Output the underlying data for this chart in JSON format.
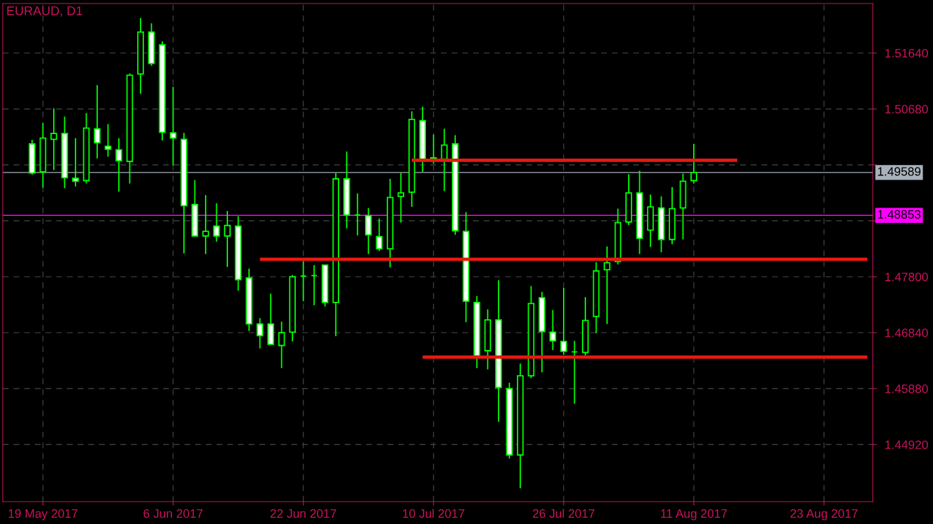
{
  "chart_data": {
    "type": "candlestick",
    "title": "EURAUD, D1",
    "categories": [
      null,
      "19 May 2017",
      null,
      null,
      null,
      null,
      null,
      null,
      null,
      null,
      null,
      null,
      null,
      "6 Jun 2017",
      null,
      null,
      null,
      null,
      null,
      null,
      null,
      null,
      null,
      null,
      null,
      "22 Jun 2017",
      null,
      null,
      null,
      null,
      null,
      null,
      null,
      null,
      null,
      null,
      null,
      "10 Jul 2017",
      null,
      null,
      null,
      null,
      null,
      null,
      null,
      null,
      null,
      null,
      null,
      "26 Jul 2017",
      null,
      null,
      null,
      null,
      null,
      null,
      null,
      null,
      null,
      null,
      null,
      "11 Aug 2017",
      null,
      null,
      null,
      null,
      null,
      null,
      null,
      null,
      null,
      null,
      null,
      "23 Aug 2017",
      null,
      null,
      null,
      null
    ],
    "ohlc": [
      [
        1.5008,
        1.5015,
        1.4955,
        1.4958
      ],
      [
        1.496,
        1.5044,
        1.4933,
        1.5018
      ],
      [
        1.5016,
        1.5069,
        1.4963,
        1.5026
      ],
      [
        1.5026,
        1.5055,
        1.4932,
        1.495
      ],
      [
        1.4949,
        1.5018,
        1.4935,
        1.4944
      ],
      [
        1.4945,
        1.5061,
        1.494,
        1.5035
      ],
      [
        1.5034,
        1.5109,
        1.4983,
        1.501
      ],
      [
        1.5004,
        1.5042,
        1.4986,
        1.4999
      ],
      [
        1.4998,
        1.5018,
        1.4926,
        1.4979
      ],
      [
        1.4978,
        1.5129,
        1.494,
        1.5126
      ],
      [
        1.5128,
        1.5224,
        1.5094,
        1.52
      ],
      [
        1.52,
        1.5215,
        1.5142,
        1.5146
      ],
      [
        1.5178,
        1.5184,
        1.5014,
        1.5028
      ],
      [
        1.5027,
        1.5106,
        1.4971,
        1.5018
      ],
      [
        1.5016,
        1.5027,
        1.482,
        1.4902
      ],
      [
        1.4904,
        1.4946,
        1.4849,
        1.485
      ],
      [
        1.485,
        1.492,
        1.4819,
        1.4858
      ],
      [
        1.4867,
        1.4906,
        1.484,
        1.485
      ],
      [
        1.485,
        1.4893,
        1.4797,
        1.4868
      ],
      [
        1.4867,
        1.4884,
        1.4756,
        1.4775
      ],
      [
        1.4778,
        1.4794,
        1.4687,
        1.4699
      ],
      [
        1.4699,
        1.4709,
        1.4657,
        1.4679
      ],
      [
        1.4699,
        1.4751,
        1.4664,
        1.4664
      ],
      [
        1.4662,
        1.4703,
        1.4623,
        1.4684
      ],
      [
        1.4685,
        1.4783,
        1.4669,
        1.478
      ],
      [
        1.4781,
        1.4807,
        1.4738,
        1.4781
      ],
      [
        1.4782,
        1.48,
        1.4731,
        1.4782
      ],
      [
        1.48,
        1.48,
        1.4729,
        1.4736
      ],
      [
        1.4736,
        1.4958,
        1.4678,
        1.4948
      ],
      [
        1.4948,
        1.4995,
        1.4863,
        1.4886
      ],
      [
        1.4886,
        1.4923,
        1.4851,
        1.4886
      ],
      [
        1.4885,
        1.4898,
        1.4819,
        1.4852
      ],
      [
        1.4849,
        1.488,
        1.4824,
        1.4828
      ],
      [
        1.4828,
        1.4948,
        1.4796,
        1.4916
      ],
      [
        1.4918,
        1.4958,
        1.4873,
        1.4924
      ],
      [
        1.4925,
        1.5064,
        1.49,
        1.505
      ],
      [
        1.5048,
        1.5072,
        1.496,
        1.4982
      ],
      [
        1.4984,
        1.5024,
        1.4974,
        1.4981
      ],
      [
        1.4982,
        1.5034,
        1.4927,
        1.5006
      ],
      [
        1.5008,
        1.5023,
        1.4852,
        1.4859
      ],
      [
        1.4858,
        1.4891,
        1.4702,
        1.4738
      ],
      [
        1.4736,
        1.4747,
        1.4623,
        1.4644
      ],
      [
        1.4653,
        1.4724,
        1.4621,
        1.4706
      ],
      [
        1.4706,
        1.4774,
        1.4531,
        1.459
      ],
      [
        1.4588,
        1.4598,
        1.4468,
        1.4474
      ],
      [
        1.4474,
        1.4631,
        1.4417,
        1.461
      ],
      [
        1.461,
        1.4764,
        1.4606,
        1.4734
      ],
      [
        1.4744,
        1.4754,
        1.4616,
        1.4686
      ],
      [
        1.4685,
        1.4723,
        1.4654,
        1.467
      ],
      [
        1.4669,
        1.4761,
        1.4646,
        1.4652
      ],
      [
        1.4651,
        1.467,
        1.4562,
        1.4651
      ],
      [
        1.465,
        1.4745,
        1.4645,
        1.4705
      ],
      [
        1.4712,
        1.4805,
        1.4683,
        1.479
      ],
      [
        1.4792,
        1.4832,
        1.4699,
        1.4804
      ],
      [
        1.4806,
        1.4897,
        1.4801,
        1.4873
      ],
      [
        1.4874,
        1.4956,
        1.4869,
        1.4924
      ],
      [
        1.4924,
        1.4962,
        1.4819,
        1.4846
      ],
      [
        1.486,
        1.4921,
        1.4831,
        1.49
      ],
      [
        1.4898,
        1.4918,
        1.4822,
        1.4844
      ],
      [
        1.4844,
        1.4934,
        1.4836,
        1.4897
      ],
      [
        1.4898,
        1.4957,
        1.4844,
        1.4944
      ],
      [
        1.4945,
        1.5008,
        1.494,
        1.49589
      ],
      null,
      null,
      null,
      null,
      null,
      null,
      null,
      null,
      null,
      null,
      null,
      null,
      null,
      null,
      null,
      null
    ],
    "colors": [
      "#ffffff",
      "#000000",
      "#000000",
      "#ffffff",
      "#ffffff",
      "#000000",
      "#ffffff",
      "#ffffff",
      "#ffffff",
      "#000000",
      "#000000",
      "#ffffff",
      "#ffffff",
      "#ffffff",
      "#ffffff",
      "#ffffff",
      "#000000",
      "#ffffff",
      "#000000",
      "#ffffff",
      "#ffffff",
      "#ffffff",
      "#ffffff",
      "#000000",
      "#000000",
      "#00ff00",
      "#00ff00",
      "#ffffff",
      "#000000",
      "#ffffff",
      "#00ff00",
      "#ffffff",
      "#ffffff",
      "#000000",
      "#000000",
      "#000000",
      "#ffffff",
      "#ffffff",
      "#000000",
      "#ffffff",
      "#ffffff",
      "#ffffff",
      "#000000",
      "#ffffff",
      "#ffffff",
      "#000000",
      "#000000",
      "#ffffff",
      "#ffffff",
      "#ffffff",
      "#00ff00",
      "#000000",
      "#000000",
      "#000000",
      "#000000",
      "#000000",
      "#ffffff",
      "#000000",
      "#ffffff",
      "#000000",
      "#000000",
      "#000000",
      null,
      null,
      null,
      null,
      null,
      null,
      null,
      null,
      null,
      null,
      null,
      null,
      null,
      null,
      null,
      null
    ],
    "color": "#00ff00",
    "series": [
      {
        "type": "line",
        "color": "#e8190f",
        "values": [
          null,
          null,
          null,
          null,
          null,
          null,
          null,
          null,
          null,
          null,
          null,
          null,
          null,
          null,
          null,
          null,
          null,
          null,
          null,
          null,
          null,
          null,
          null,
          null,
          null,
          null,
          null,
          null,
          null,
          null,
          null,
          null,
          null,
          null,
          null,
          1.498,
          1.498,
          1.498,
          1.498,
          1.498,
          1.498,
          1.498,
          1.498,
          1.498,
          1.498,
          1.498,
          1.498,
          1.498,
          1.498,
          1.498,
          1.498,
          1.498,
          1.498,
          1.498,
          1.498,
          1.498,
          1.498,
          1.498,
          1.498,
          1.498,
          1.498,
          1.498,
          1.498,
          1.498,
          1.498,
          1.498,
          null,
          null,
          null,
          null,
          null,
          null,
          null,
          null,
          null,
          null,
          null,
          null
        ]
      },
      {
        "type": "line",
        "color": "#e8190f",
        "values": [
          null,
          null,
          null,
          null,
          null,
          null,
          null,
          null,
          null,
          null,
          null,
          null,
          null,
          null,
          null,
          null,
          null,
          null,
          null,
          null,
          null,
          1.481,
          1.481,
          1.481,
          1.481,
          1.481,
          1.481,
          1.481,
          1.481,
          1.481,
          1.481,
          1.481,
          1.481,
          1.481,
          1.481,
          1.481,
          1.481,
          1.481,
          1.481,
          1.481,
          1.481,
          1.481,
          1.481,
          1.481,
          1.481,
          1.481,
          1.481,
          1.481,
          1.481,
          1.481,
          1.481,
          1.481,
          1.481,
          1.481,
          1.481,
          1.481,
          1.481,
          1.481,
          1.481,
          1.481,
          1.481,
          1.481,
          1.481,
          1.481,
          1.481,
          1.481,
          1.481,
          1.481,
          1.481,
          1.481,
          1.481,
          1.481,
          1.481,
          1.481,
          1.481,
          1.481,
          1.481,
          1.481
        ]
      },
      {
        "type": "line",
        "color": "#e8190f",
        "values": [
          null,
          null,
          null,
          null,
          null,
          null,
          null,
          null,
          null,
          null,
          null,
          null,
          null,
          null,
          null,
          null,
          null,
          null,
          null,
          null,
          null,
          null,
          null,
          null,
          null,
          null,
          null,
          null,
          null,
          null,
          null,
          null,
          null,
          null,
          null,
          null,
          1.4642,
          1.4642,
          1.4642,
          1.4642,
          1.4642,
          1.4642,
          1.4642,
          1.4642,
          1.4642,
          1.4642,
          1.4642,
          1.4642,
          1.4642,
          1.4642,
          1.4642,
          1.4642,
          1.4642,
          1.4642,
          1.4642,
          1.4642,
          1.4642,
          1.4642,
          1.4642,
          1.4642,
          1.4642,
          1.4642,
          1.4642,
          1.4642,
          1.4642,
          1.4642,
          1.4642,
          1.4642,
          1.4642,
          1.4642,
          1.4642,
          1.4642,
          1.4642,
          1.4642,
          1.4642,
          1.4642,
          1.4642,
          1.4642
        ]
      }
    ],
    "ref_lines": [
      {
        "axis": "y",
        "value": 1.49589,
        "label": "1.49589",
        "color": "#a9b2bb"
      },
      {
        "axis": "y",
        "value": 1.48853,
        "label": "1.48853",
        "color": "#ff00ff"
      }
    ],
    "ylim": [
      1.4394,
      1.5249
    ],
    "yticks": [
      {
        "value": 1.4492,
        "label": "1.44920"
      },
      {
        "value": 1.4588,
        "label": "1.45880"
      },
      {
        "value": 1.4684,
        "label": "1.46840"
      },
      {
        "value": 1.478,
        "label": "1.47800"
      },
      {
        "value": 1.4876,
        "label": null
      },
      {
        "value": 1.4972,
        "label": null
      },
      {
        "value": 1.5068,
        "label": "1.50680"
      },
      {
        "value": 1.5164,
        "label": "1.51640"
      }
    ],
    "grid": true,
    "line_style": "solid"
  }
}
